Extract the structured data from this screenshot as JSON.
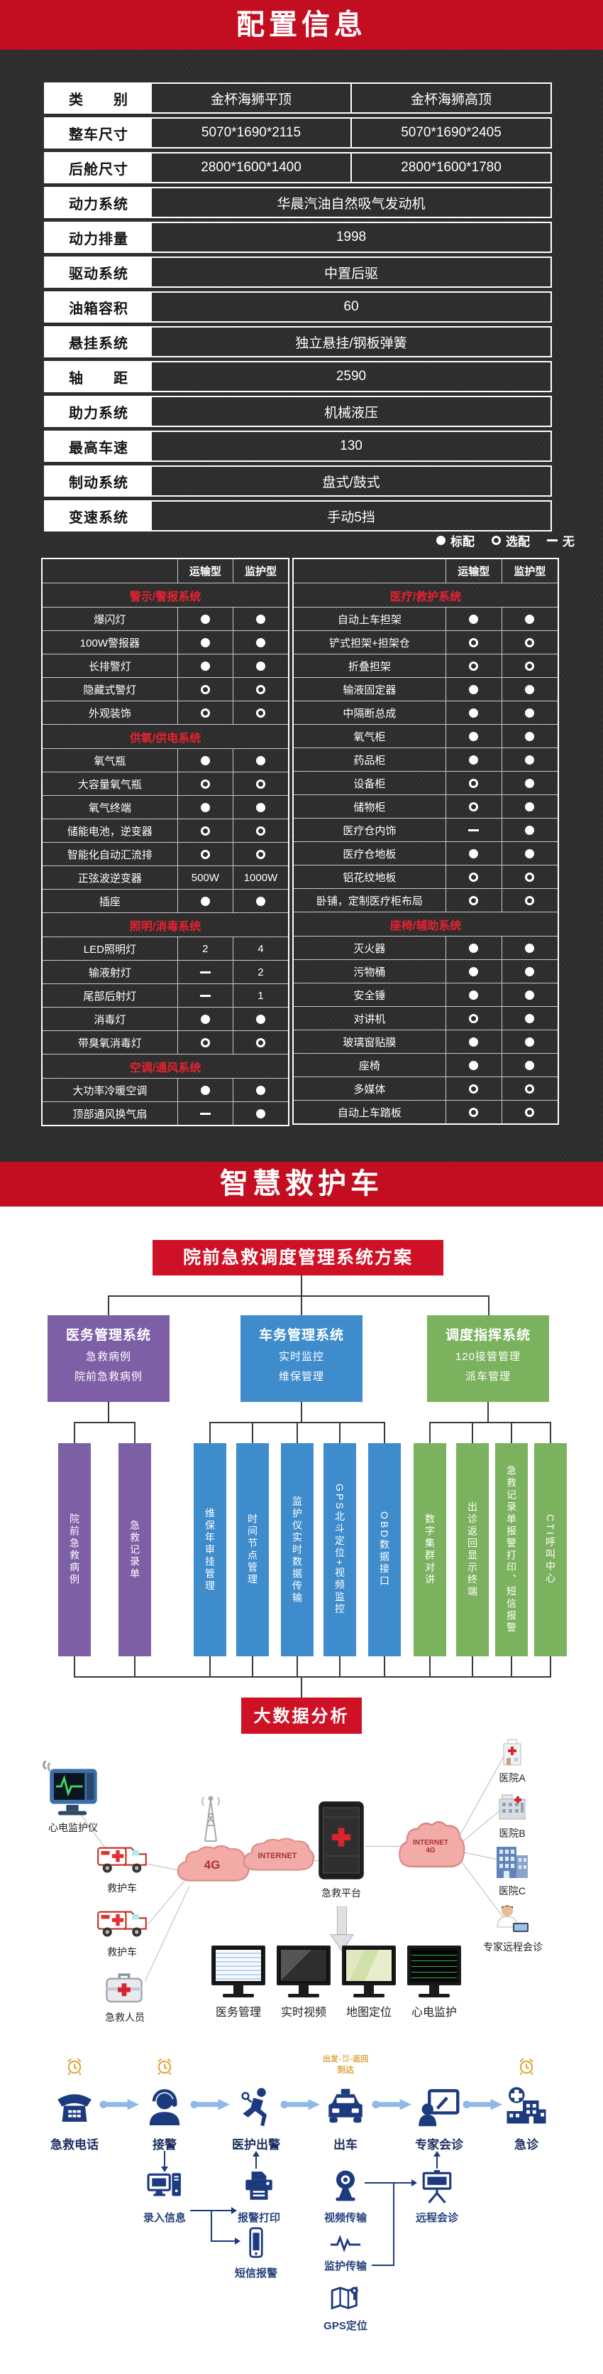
{
  "banner1": {
    "title": "配置信息"
  },
  "banner2": {
    "title": "智慧救护车"
  },
  "spec_table": {
    "header": {
      "label": "类　　别",
      "col1": "金杯海狮平顶",
      "col2": "金杯海狮高顶"
    },
    "rows": [
      {
        "label": "整车尺寸",
        "values": [
          "5070*1690*2115",
          "5070*1690*2405"
        ]
      },
      {
        "label": "后舱尺寸",
        "values": [
          "2800*1600*1400",
          "2800*1600*1780"
        ]
      },
      {
        "label": "动力系统",
        "value": "华晨汽油自然吸气发动机"
      },
      {
        "label": "动力排量",
        "value": "1998"
      },
      {
        "label": "驱动系统",
        "value": "中置后驱"
      },
      {
        "label": "油箱容积",
        "value": "60"
      },
      {
        "label": "悬挂系统",
        "value": "独立悬挂/钢板弹簧"
      },
      {
        "label": "轴　　距",
        "value": "2590"
      },
      {
        "label": "助力系统",
        "value": "机械液压"
      },
      {
        "label": "最高车速",
        "value": "130"
      },
      {
        "label": "制动系统",
        "value": "盘式/鼓式"
      },
      {
        "label": "变速系统",
        "value": "手动5挡"
      }
    ]
  },
  "legend": {
    "standard": "标配",
    "optional": "选配",
    "none": "无"
  },
  "matrix": {
    "col1": "运输型",
    "col2": "监护型",
    "left": [
      {
        "type": "section",
        "label": "警示/警报系统"
      },
      {
        "type": "item",
        "label": "爆闪灯",
        "v1": "std",
        "v2": "std"
      },
      {
        "type": "item",
        "label": "100W警报器",
        "v1": "std",
        "v2": "std"
      },
      {
        "type": "item",
        "label": "长排警灯",
        "v1": "std",
        "v2": "std"
      },
      {
        "type": "item",
        "label": "隐藏式警灯",
        "v1": "opt",
        "v2": "opt"
      },
      {
        "type": "item",
        "label": "外观装饰",
        "v1": "opt",
        "v2": "opt"
      },
      {
        "type": "section",
        "label": "供氧/供电系统"
      },
      {
        "type": "item",
        "label": "氧气瓶",
        "v1": "std",
        "v2": "std"
      },
      {
        "type": "item",
        "label": "大容量氧气瓶",
        "v1": "opt",
        "v2": "opt"
      },
      {
        "type": "item",
        "label": "氧气终端",
        "v1": "std",
        "v2": "std"
      },
      {
        "type": "item",
        "label": "储能电池，逆变器",
        "v1": "opt",
        "v2": "opt"
      },
      {
        "type": "item",
        "label": "智能化自动汇流排",
        "v1": "opt",
        "v2": "opt"
      },
      {
        "type": "item",
        "label": "正弦波逆变器",
        "v1": "500W",
        "v2": "1000W"
      },
      {
        "type": "item",
        "label": "插座",
        "v1": "std",
        "v2": "std"
      },
      {
        "type": "section",
        "label": "照明/消毒系统"
      },
      {
        "type": "item",
        "label": "LED照明灯",
        "v1": "2",
        "v2": "4"
      },
      {
        "type": "item",
        "label": "输液射灯",
        "v1": "none",
        "v2": "2"
      },
      {
        "type": "item",
        "label": "尾部后射灯",
        "v1": "none",
        "v2": "1"
      },
      {
        "type": "item",
        "label": "消毒灯",
        "v1": "std",
        "v2": "std"
      },
      {
        "type": "item",
        "label": "带臭氧消毒灯",
        "v1": "opt",
        "v2": "opt"
      },
      {
        "type": "section",
        "label": "空调/通风系统"
      },
      {
        "type": "item",
        "label": "大功率冷暖空调",
        "v1": "std",
        "v2": "std"
      },
      {
        "type": "item",
        "label": "顶部通风换气扇",
        "v1": "none",
        "v2": "std"
      }
    ],
    "right": [
      {
        "type": "section",
        "label": "医疗/救护系统"
      },
      {
        "type": "item",
        "label": "自动上车担架",
        "v1": "std",
        "v2": "std"
      },
      {
        "type": "item",
        "label": "铲式担架+担架仓",
        "v1": "opt",
        "v2": "opt"
      },
      {
        "type": "item",
        "label": "折叠担架",
        "v1": "opt",
        "v2": "opt"
      },
      {
        "type": "item",
        "label": "输液固定器",
        "v1": "std",
        "v2": "std"
      },
      {
        "type": "item",
        "label": "中隔断总成",
        "v1": "std",
        "v2": "std"
      },
      {
        "type": "item",
        "label": "氧气柜",
        "v1": "std",
        "v2": "std"
      },
      {
        "type": "item",
        "label": "药品柜",
        "v1": "std",
        "v2": "std"
      },
      {
        "type": "item",
        "label": "设备柜",
        "v1": "opt",
        "v2": "std"
      },
      {
        "type": "item",
        "label": "储物柜",
        "v1": "opt",
        "v2": "std"
      },
      {
        "type": "item",
        "label": "医疗仓内饰",
        "v1": "none",
        "v2": "std"
      },
      {
        "type": "item",
        "label": "医疗仓地板",
        "v1": "std",
        "v2": "std"
      },
      {
        "type": "item",
        "label": "铝花纹地板",
        "v1": "opt",
        "v2": "opt"
      },
      {
        "type": "item",
        "label": "卧铺，定制医疗柜布局",
        "v1": "opt",
        "v2": "opt"
      },
      {
        "type": "section",
        "label": "座椅/辅助系统"
      },
      {
        "type": "item",
        "label": "灭火器",
        "v1": "std",
        "v2": "std"
      },
      {
        "type": "item",
        "label": "污物桶",
        "v1": "std",
        "v2": "std"
      },
      {
        "type": "item",
        "label": "安全锤",
        "v1": "std",
        "v2": "std"
      },
      {
        "type": "item",
        "label": "对讲机",
        "v1": "opt",
        "v2": "std"
      },
      {
        "type": "item",
        "label": "玻璃窗贴膜",
        "v1": "std",
        "v2": "std"
      },
      {
        "type": "item",
        "label": "座椅",
        "v1": "std",
        "v2": "std"
      },
      {
        "type": "item",
        "label": "多媒体",
        "v1": "opt",
        "v2": "opt"
      },
      {
        "type": "item",
        "label": "自动上车踏板",
        "v1": "opt",
        "v2": "opt"
      }
    ]
  },
  "flowchart": {
    "root": "院前急救调度管理系统方案",
    "groups": [
      {
        "title": "医务管理系统",
        "lines": [
          "急救病例",
          "院前急救病例"
        ],
        "color": "#7d5fa5",
        "children": [
          "院前急救病例",
          "急救记录单"
        ]
      },
      {
        "title": "车务管理系统",
        "lines": [
          "实时监控",
          "维保管理"
        ],
        "color": "#3f8ccd",
        "children": [
          "维保年审挂管理",
          "时间节点管理",
          "监护仪实时数据传输",
          "GPS北斗定位+视频监控",
          "OBD数据接口"
        ]
      },
      {
        "title": "调度指挥系统",
        "lines": [
          "120接管管理",
          "派车管理"
        ],
        "color": "#7bb25e",
        "children": [
          "数字集群对讲",
          "出诊返回显示终端",
          "急救记录单报警打印、短信报警",
          "CTI呼叫中心"
        ]
      }
    ],
    "sink": "大数据分析"
  },
  "network": {
    "nodes": [
      {
        "id": "ecg",
        "label": "心电监护仪",
        "icon": "ecg-monitor-icon"
      },
      {
        "id": "amb1",
        "label": "救护车",
        "icon": "ambulance-icon"
      },
      {
        "id": "amb2",
        "label": "救护车",
        "icon": "ambulance-icon"
      },
      {
        "id": "kit",
        "label": "急救人员",
        "icon": "first-aid-kit-icon"
      },
      {
        "id": "tower",
        "label": "",
        "icon": "signal-tower-icon"
      },
      {
        "id": "cloud4g",
        "label": "4G",
        "icon": "cloud-icon"
      },
      {
        "id": "cloudnet",
        "label": "INTERNET",
        "icon": "cloud-icon"
      },
      {
        "id": "platform",
        "label": "急救平台",
        "icon": "platform-icon"
      },
      {
        "id": "cloudright",
        "label": "INTERNET 4G",
        "icon": "cloud-icon"
      },
      {
        "id": "hospA",
        "label": "医院A",
        "icon": "hospital-a-icon"
      },
      {
        "id": "hospB",
        "label": "医院B",
        "icon": "hospital-b-icon"
      },
      {
        "id": "hospC",
        "label": "医院C",
        "icon": "hospital-c-icon"
      },
      {
        "id": "doctor",
        "label": "专家远程会诊",
        "icon": "doctor-icon"
      }
    ],
    "monitors": [
      {
        "label": "医务管理",
        "screen": "med"
      },
      {
        "label": "实时视频",
        "screen": "video"
      },
      {
        "label": "地图定位",
        "screen": "map"
      },
      {
        "label": "心电监护",
        "screen": "ecg"
      }
    ]
  },
  "process": {
    "timer": {
      "depart": "出发",
      "back": "返回",
      "arrive": "到达"
    },
    "main": [
      {
        "label": "急救电话",
        "icon": "phone-icon",
        "clock": true
      },
      {
        "label": "接警",
        "icon": "operator-icon",
        "clock": true
      },
      {
        "label": "医护出警",
        "icon": "runner-icon"
      },
      {
        "label": "出车",
        "icon": "car-icon",
        "timer": true
      },
      {
        "label": "专家会诊",
        "icon": "consult-icon"
      },
      {
        "label": "急诊",
        "icon": "er-hospital-icon",
        "clock": true
      }
    ],
    "sub": [
      {
        "label": "录入信息",
        "icon": "computer-icon"
      },
      {
        "label": "报警打印",
        "icon": "printer-icon"
      },
      {
        "label": "视频传输",
        "icon": "webcam-icon"
      },
      {
        "label": "远程会诊",
        "icon": "projector-icon"
      }
    ],
    "sub2": [
      {
        "label": "短信报警",
        "icon": "mobile-icon"
      },
      {
        "label": "监护传输",
        "icon": "waveform-icon"
      },
      {
        "label": "GPS定位",
        "icon": "gps-map-icon"
      }
    ]
  }
}
